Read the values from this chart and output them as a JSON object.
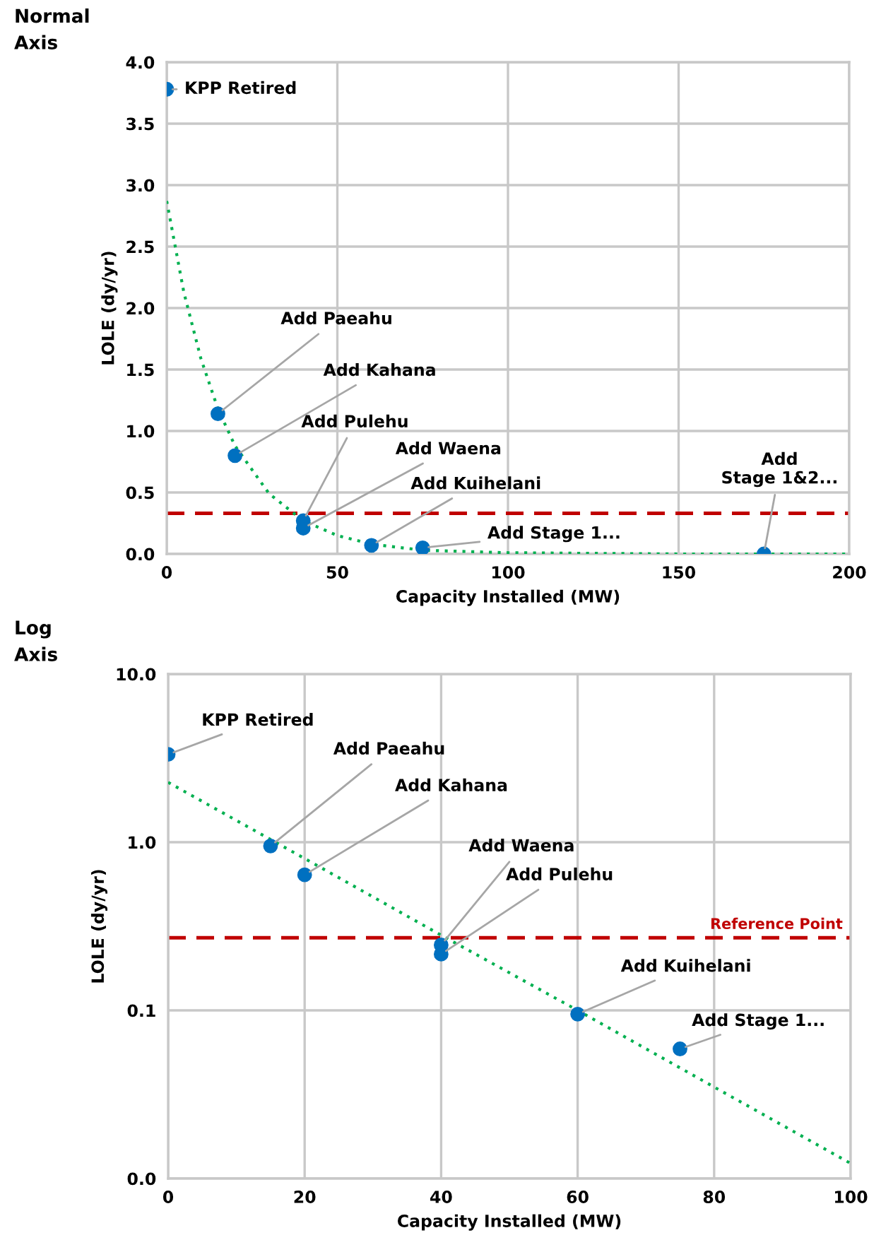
{
  "chart_data": [
    {
      "type": "scatter",
      "title": "Normal\nAxis",
      "xlabel": "Capacity Installed (MW)",
      "ylabel": "LOLE (dy/yr)",
      "xlim": [
        0,
        200
      ],
      "xticks": [
        0,
        50,
        100,
        150,
        200
      ],
      "ylim": [
        0,
        4.0
      ],
      "yticks": [
        {
          "value": 0,
          "label": "0.0"
        },
        0.5,
        {
          "value": 1,
          "label": "1.0"
        },
        1.5,
        {
          "value": 2,
          "label": "2.0"
        },
        2.5,
        {
          "value": 3,
          "label": "3.0"
        },
        3.5,
        {
          "value": 4,
          "label": "4.0"
        }
      ],
      "grid": true,
      "legend": false,
      "marker": "circle",
      "series": [
        {
          "color": "#0070c0",
          "x": [
            0,
            15,
            20,
            40,
            40,
            60,
            75,
            175
          ],
          "values": [
            3.78,
            1.14,
            0.8,
            0.27,
            0.21,
            0.07,
            0.05,
            0.0
          ]
        },
        {
          "type": "line",
          "color": "#00b050",
          "line_style": "dotted",
          "marker": "none",
          "x": [
            0,
            5,
            10,
            15,
            20,
            30,
            40,
            50,
            60,
            75,
            100,
            150,
            200
          ],
          "values": [
            2.87,
            2.13,
            1.59,
            1.18,
            0.88,
            0.49,
            0.27,
            0.15,
            0.08,
            0.03,
            0.01,
            0.0,
            0.0
          ]
        }
      ],
      "ref_lines": [
        {
          "axis": "y",
          "value": 0.33,
          "color": "#c00000",
          "line_style": "dashed"
        }
      ],
      "annotations": [
        {
          "text": "KPP Retired",
          "x": 0,
          "y": 3.78
        },
        {
          "text": "Add Paeahu",
          "x": 15,
          "y": 1.14
        },
        {
          "text": "Add Kahana",
          "x": 20,
          "y": 0.8
        },
        {
          "text": "Add Pulehu",
          "x": 40,
          "y": 0.27
        },
        {
          "text": "Add Waena",
          "x": 40,
          "y": 0.21
        },
        {
          "text": "Add Kuihelani",
          "x": 60,
          "y": 0.07
        },
        {
          "text": "Add Stage 1...",
          "x": 75,
          "y": 0.05
        },
        {
          "text": "Add\nStage 1&2...",
          "x": 175,
          "y": 0.0
        }
      ]
    },
    {
      "type": "scatter",
      "title": "Log\nAxis",
      "xlabel": "Capacity Installed (MW)",
      "ylabel": "LOLE (dy/yr)",
      "log": "y",
      "xlim": [
        0,
        100
      ],
      "xticks": [
        0,
        20,
        40,
        60,
        80,
        100
      ],
      "ylim": [
        0.01,
        10
      ],
      "yticks": [
        {
          "value": 0.01,
          "label": "0.0"
        },
        {
          "value": 0.1,
          "label": "0.1"
        },
        {
          "value": 1,
          "label": "1.0"
        },
        {
          "value": 10,
          "label": "10.0"
        }
      ],
      "grid": true,
      "legend": false,
      "marker": "circle",
      "series": [
        {
          "color": "#0070c0",
          "x": [
            0,
            15,
            20,
            40,
            40,
            60,
            75
          ],
          "values": [
            3.33,
            0.95,
            0.64,
            0.245,
            0.216,
            0.095,
            0.059
          ]
        },
        {
          "type": "line",
          "color": "#00b050",
          "line_style": "dotted",
          "marker": "none",
          "x": [
            0,
            20,
            40,
            60,
            80,
            100
          ],
          "values": [
            2.27,
            0.8,
            0.28,
            0.1,
            0.035,
            0.0123
          ]
        }
      ],
      "ref_lines": [
        {
          "axis": "y",
          "value": 0.27,
          "label": "Reference Point",
          "color": "#c00000",
          "line_style": "dashed"
        }
      ],
      "annotations": [
        {
          "text": "KPP Retired",
          "x": 0,
          "y": 3.33
        },
        {
          "text": "Add Paeahu",
          "x": 15,
          "y": 0.95
        },
        {
          "text": "Add Kahana",
          "x": 20,
          "y": 0.64
        },
        {
          "text": "Add Waena",
          "x": 40,
          "y": 0.245
        },
        {
          "text": "Add Pulehu",
          "x": 40,
          "y": 0.216
        },
        {
          "text": "Add Kuihelani",
          "x": 60,
          "y": 0.095
        },
        {
          "text": "Add Stage 1...",
          "x": 75,
          "y": 0.059
        }
      ]
    }
  ]
}
